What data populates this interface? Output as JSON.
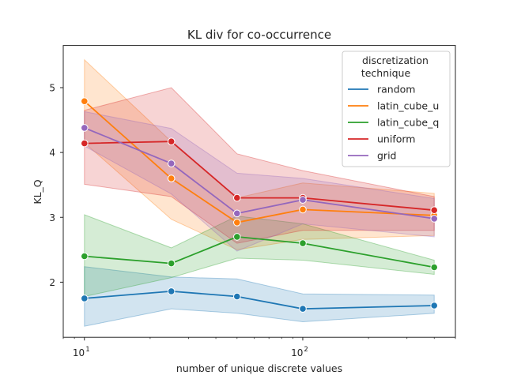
{
  "chart_data": {
    "type": "line",
    "title": "KL div for co-occurrence",
    "xlabel": "number of unique discrete values",
    "ylabel": "KL_Q",
    "xscale": "log",
    "xlim": [
      8,
      500
    ],
    "ylim": [
      1.15,
      5.65
    ],
    "grid": false,
    "legend_position": "top-right",
    "x_ticks": [
      {
        "value": 10,
        "base": "10",
        "exp": "1"
      },
      {
        "value": 100,
        "base": "10",
        "exp": "2"
      }
    ],
    "y_ticks": [
      {
        "value": 2,
        "label": "2"
      },
      {
        "value": 3,
        "label": "3"
      },
      {
        "value": 4,
        "label": "4"
      },
      {
        "value": 5,
        "label": "5"
      }
    ],
    "legend_title": [
      "discretization",
      "technique"
    ],
    "x": [
      10,
      25,
      50,
      100,
      400
    ],
    "series": [
      {
        "name": "random",
        "color": "#1f77b4",
        "values": [
          1.75,
          1.86,
          1.78,
          1.59,
          1.64
        ],
        "ci_low": [
          1.32,
          1.59,
          1.52,
          1.39,
          1.52
        ],
        "ci_high": [
          2.24,
          2.08,
          2.05,
          1.82,
          1.8
        ]
      },
      {
        "name": "latin_cube_u",
        "color": "#ff7f0e",
        "values": [
          4.79,
          3.6,
          2.92,
          3.12,
          3.03
        ],
        "ci_low": [
          4.15,
          2.97,
          2.5,
          2.66,
          2.72
        ],
        "ci_high": [
          5.43,
          4.17,
          3.3,
          3.53,
          3.37
        ]
      },
      {
        "name": "latin_cube_q",
        "color": "#2ca02c",
        "values": [
          2.4,
          2.29,
          2.7,
          2.6,
          2.23
        ],
        "ci_low": [
          1.78,
          2.07,
          2.37,
          2.34,
          2.12
        ],
        "ci_high": [
          3.04,
          2.53,
          3.02,
          2.9,
          2.34
        ]
      },
      {
        "name": "uniform",
        "color": "#d62728",
        "values": [
          4.14,
          4.17,
          3.3,
          3.3,
          3.11
        ],
        "ci_low": [
          3.51,
          3.32,
          2.6,
          2.8,
          2.8
        ],
        "ci_high": [
          4.65,
          5.0,
          3.98,
          3.72,
          3.32
        ]
      },
      {
        "name": "grid",
        "color": "#9467bd",
        "values": [
          4.38,
          3.83,
          3.06,
          3.27,
          2.98
        ],
        "ci_low": [
          4.1,
          3.36,
          2.48,
          2.9,
          2.7
        ],
        "ci_high": [
          4.63,
          4.37,
          3.68,
          3.6,
          3.29
        ]
      }
    ]
  }
}
